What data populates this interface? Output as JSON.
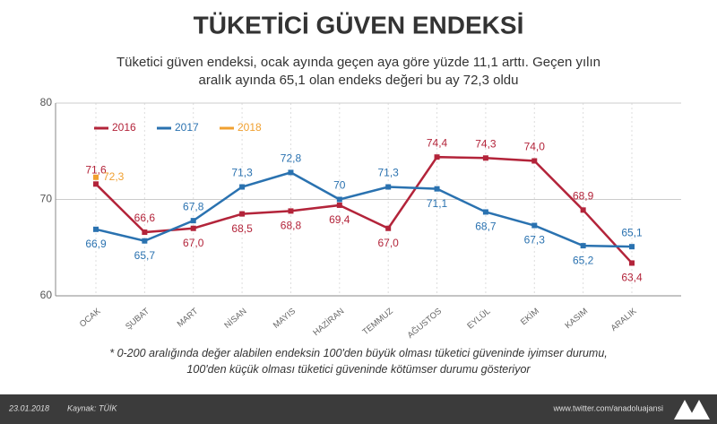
{
  "chart_data": {
    "type": "line",
    "title": "TÜKETİCİ GÜVEN ENDEKSİ",
    "subtitle": "Tüketici güven endeksi, ocak ayında geçen aya göre yüzde 11,1 arttı. Geçen yılın aralık ayında 65,1 olan endeks değeri bu ay 72,3 oldu",
    "note": "* 0-200 aralığında değer alabilen endeksin 100'den büyük olması tüketici güveninde iyimser durumu, 100'den küçük olması tüketici güveninde kötümser durumu gösteriyor",
    "date": "23.01.2018",
    "source": "Kaynak: TÜİK",
    "website": "www.twitter.com/anadoluajansi",
    "categories": [
      "OCAK",
      "ŞUBAT",
      "MART",
      "NİSAN",
      "MAYIS",
      "HAZİRAN",
      "TEMMUZ",
      "AĞUSTOS",
      "EYLÜL",
      "EKİM",
      "KASIM",
      "ARALIK"
    ],
    "series": [
      {
        "name": "2016",
        "color": "#b3243a",
        "values": [
          71.6,
          66.6,
          67.0,
          68.5,
          68.8,
          69.4,
          67.0,
          74.4,
          74.3,
          74.0,
          68.9,
          63.4
        ],
        "value_labels": [
          "71,6",
          "66,6",
          "67,0",
          "68,5",
          "68,8",
          "69,4",
          "67,0",
          "74,4",
          "74,3",
          "74,0",
          "68,9",
          "63,4"
        ]
      },
      {
        "name": "2017",
        "color": "#2a72b0",
        "values": [
          66.9,
          65.7,
          67.8,
          71.3,
          72.8,
          70,
          71.3,
          71.1,
          68.7,
          67.3,
          65.2,
          65.1
        ],
        "value_labels": [
          "66,9",
          "65,7",
          "67,8",
          "71,3",
          "72,8",
          "70",
          "71,3",
          "71,1",
          "68,7",
          "67,3",
          "65,2",
          "65,1"
        ]
      },
      {
        "name": "2018",
        "color": "#f0a030",
        "values": [
          72.3,
          null,
          null,
          null,
          null,
          null,
          null,
          null,
          null,
          null,
          null,
          null
        ],
        "value_labels": [
          "72,3",
          null,
          null,
          null,
          null,
          null,
          null,
          null,
          null,
          null,
          null,
          null
        ]
      }
    ],
    "ylim": [
      60,
      80
    ],
    "yticks": [
      60,
      70,
      80
    ]
  }
}
